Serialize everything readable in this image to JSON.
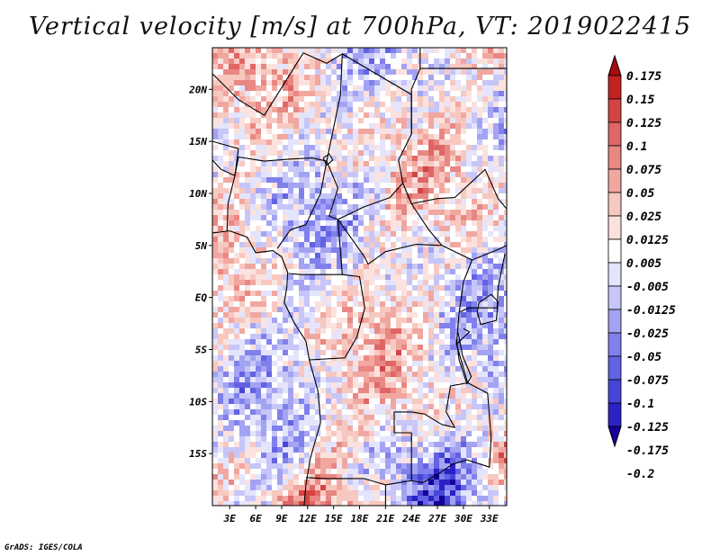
{
  "title": "Vertical velocity [m/s] at 700hPa, VT: 2019022415",
  "credit": "GrADS: IGES/COLA",
  "map": {
    "lon_range": [
      1,
      35
    ],
    "lat_range": [
      -20,
      24
    ],
    "lat_ticks": [
      {
        "value": 20,
        "label": "20N"
      },
      {
        "value": 15,
        "label": "15N"
      },
      {
        "value": 10,
        "label": "10N"
      },
      {
        "value": 5,
        "label": "5N"
      },
      {
        "value": 0,
        "label": "EQ"
      },
      {
        "value": -5,
        "label": "5S"
      },
      {
        "value": -10,
        "label": "10S"
      },
      {
        "value": -15,
        "label": "15S"
      }
    ],
    "lon_ticks": [
      {
        "value": 3,
        "label": "3E"
      },
      {
        "value": 6,
        "label": "6E"
      },
      {
        "value": 9,
        "label": "9E"
      },
      {
        "value": 12,
        "label": "12E"
      },
      {
        "value": 15,
        "label": "15E"
      },
      {
        "value": 18,
        "label": "18E"
      },
      {
        "value": 21,
        "label": "21E"
      },
      {
        "value": 24,
        "label": "24E"
      },
      {
        "value": 27,
        "label": "27E"
      },
      {
        "value": 30,
        "label": "30E"
      },
      {
        "value": 33,
        "label": "33E"
      }
    ]
  },
  "colorbar": {
    "colors": [
      "#16009c",
      "#2a22c6",
      "#4545d8",
      "#6262e2",
      "#8080ec",
      "#a3a3f3",
      "#c6c6f8",
      "#e4e4fc",
      "#ffffff",
      "#fbe2de",
      "#f7c8c0",
      "#f1a7a0",
      "#e98783",
      "#e06666",
      "#d44444",
      "#c42222",
      "#a80c0c"
    ],
    "labels": [
      "0.175",
      "0.15",
      "0.125",
      "0.1",
      "0.075",
      "0.05",
      "0.025",
      "0.0125",
      "0.005",
      "-0.005",
      "-0.0125",
      "-0.025",
      "-0.05",
      "-0.075",
      "-0.1",
      "-0.125",
      "-0.175",
      "-0.2"
    ]
  }
}
